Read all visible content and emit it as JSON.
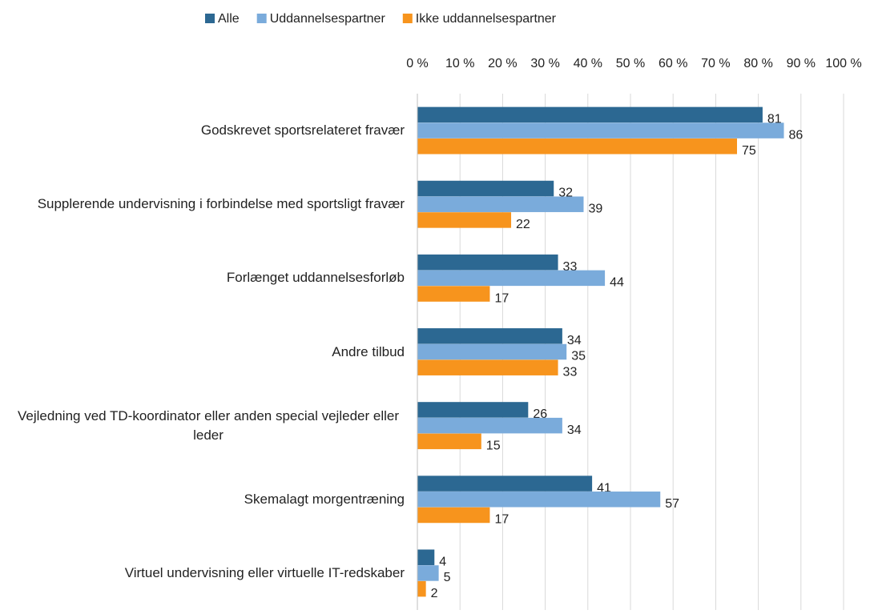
{
  "chart_data": {
    "type": "hbar",
    "categories": [
      "Godskrevet sportsrelateret fravær",
      "Supplerende undervisning i forbindelse med sportsligt fravær",
      "Forlænget uddannelsesforløb",
      "Andre tilbud",
      "Vejledning ved TD-koordinator eller anden special vejleder eller leder",
      "Skemalagt morgentræning",
      "Virtuel undervisning eller virtuelle IT-redskaber"
    ],
    "series": [
      {
        "name": "Alle",
        "color": "#2c6892",
        "values": [
          81,
          32,
          33,
          34,
          26,
          41,
          4
        ]
      },
      {
        "name": "Uddannelsespartner",
        "color": "#7aabdb",
        "values": [
          86,
          39,
          44,
          35,
          34,
          57,
          5
        ]
      },
      {
        "name": "Ikke uddannelsespartner",
        "color": "#f7941d",
        "values": [
          75,
          22,
          17,
          33,
          15,
          17,
          2
        ]
      }
    ],
    "xlim": [
      0,
      100
    ],
    "xticks": [
      {
        "value": 0,
        "label": "0 %"
      },
      {
        "value": 10,
        "label": "10 %"
      },
      {
        "value": 20,
        "label": "20 %"
      },
      {
        "value": 30,
        "label": "30 %"
      },
      {
        "value": 40,
        "label": "40 %"
      },
      {
        "value": 50,
        "label": "50 %"
      },
      {
        "value": 60,
        "label": "60 %"
      },
      {
        "value": 70,
        "label": "70 %"
      },
      {
        "value": 80,
        "label": "80 %"
      },
      {
        "value": 90,
        "label": "90 %"
      },
      {
        "value": 100,
        "label": "100 %"
      }
    ],
    "grid": true,
    "legend": "top"
  }
}
